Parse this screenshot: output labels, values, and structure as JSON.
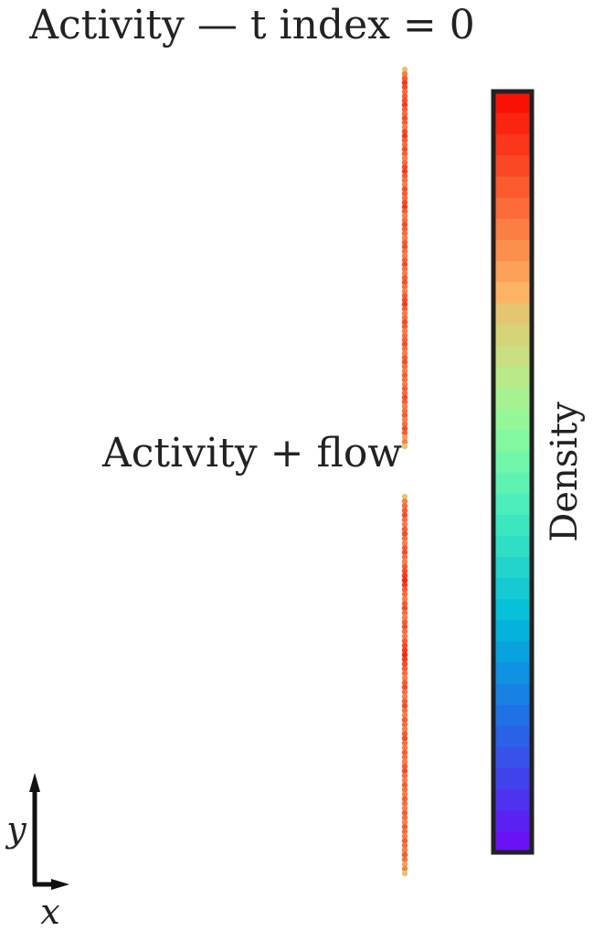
{
  "chart_data": {
    "type": "scatter",
    "title": "Activity — t index = 0",
    "panel_label": "Activity + flow",
    "colorbar_label": "Density",
    "colorbar_colors": [
      "#6a12f5",
      "#5c22f2",
      "#4e32ef",
      "#4242ed",
      "#3652eb",
      "#2a62e9",
      "#1e72e6",
      "#1882e4",
      "#0f92e1",
      "#08a2df",
      "#04b2dc",
      "#08c0d8",
      "#15cad2",
      "#22d4cc",
      "#2fdec5",
      "#3ce6bf",
      "#4ceeb9",
      "#5ef3b1",
      "#70f7a9",
      "#82f9a0",
      "#94f898",
      "#a6f290",
      "#b8ea88",
      "#c8e080",
      "#d6d478",
      "#e4c670",
      "#fcb462",
      "#fca258",
      "#fb904d",
      "#fb7e43",
      "#fb6c39",
      "#fb5a2e",
      "#fb4824",
      "#fb361a",
      "#fb2410",
      "#fb1206"
    ],
    "series": [
      {
        "segment": "upper",
        "x": 0,
        "y_range": [
          0,
          1
        ],
        "colors": [
          "#e4c670",
          "#fb7e43",
          "#fb5a2e",
          "#fb361a",
          "#fb4824",
          "#fb6c39",
          "#fb5a2e",
          "#fb4824",
          "#fb361a",
          "#fb5a2e",
          "#fb6c39",
          "#fb4824",
          "#fb5a2e",
          "#fb7e43",
          "#fb4824",
          "#fb361a",
          "#fb5a2e",
          "#fb6c39",
          "#fb4824",
          "#fb5a2e",
          "#fb7e43",
          "#fb6c39",
          "#fb4824",
          "#fb361a",
          "#fb5a2e",
          "#fb6c39",
          "#fb7e43",
          "#fb4824",
          "#fb5a2e",
          "#fb6c39",
          "#fb4824",
          "#fb361a",
          "#fb5a2e",
          "#fb7e43",
          "#fb6c39",
          "#fb4824",
          "#fb5a2e",
          "#fb6c39",
          "#fb7e43",
          "#fb5a2e",
          "#fb4824",
          "#fb6c39",
          "#fb7e43",
          "#fb5a2e",
          "#fb4824",
          "#fb6c39",
          "#fb7e43",
          "#fb5a2e",
          "#fb4824",
          "#fb6c39",
          "#fb7e43",
          "#fb5a2e",
          "#fb4824",
          "#fb361a",
          "#fb5a2e",
          "#fb7e43",
          "#fb6c39",
          "#fb4824",
          "#fb5a2e",
          "#fb7e43",
          "#fb6c39",
          "#fb5a2e",
          "#fb4824",
          "#fb6c39",
          "#fb7e43",
          "#fb5a2e",
          "#fb4824",
          "#fb6c39",
          "#fb7e43",
          "#fb5a2e",
          "#fb6c39",
          "#fb7e43",
          "#fb5a2e",
          "#fb6c39",
          "#fb4824",
          "#fb5a2e",
          "#fb7e43",
          "#fb6c39",
          "#fb5a2e",
          "#fb7e43",
          "#fb6c39",
          "#fb4824",
          "#fb5a2e",
          "#fca258",
          "#fb7e43",
          "#e4c670"
        ]
      },
      {
        "segment": "lower",
        "x": 0,
        "y_range": [
          0,
          1
        ],
        "colors": [
          "#e4c670",
          "#fb7e43",
          "#fb6c39",
          "#fb5a2e",
          "#fb4824",
          "#fb6c39",
          "#fb7e43",
          "#fb5a2e",
          "#fb4824",
          "#fb6c39",
          "#fb7e43",
          "#fb5a2e",
          "#fb4824",
          "#fb6c39",
          "#fb7e43",
          "#fb5a2e",
          "#fb4824",
          "#fb361a",
          "#fb2410",
          "#fb361a",
          "#fb5a2e",
          "#fb6c39",
          "#fb7e43",
          "#fb5a2e",
          "#fb4824",
          "#fb6c39",
          "#fb7e43",
          "#fb5a2e",
          "#fb4824",
          "#fb6c39",
          "#fb7e43",
          "#fb5a2e",
          "#fb4824",
          "#fb361a",
          "#fb2410",
          "#fb361a",
          "#fb4824",
          "#fb5a2e",
          "#fb6c39",
          "#fb7e43",
          "#fb5a2e",
          "#fb4824",
          "#fb6c39",
          "#fb7e43",
          "#fb5a2e",
          "#fb4824",
          "#fb6c39",
          "#fb7e43",
          "#fb5a2e",
          "#fb6c39",
          "#fb7e43",
          "#fb5a2e",
          "#fb4824",
          "#fb6c39",
          "#fb7e43",
          "#fb5a2e",
          "#fb6c39",
          "#fb7e43",
          "#fb5a2e",
          "#fb4824",
          "#fb6c39",
          "#fb7e43",
          "#fb5a2e",
          "#fb6c39",
          "#fb7e43",
          "#fb5a2e",
          "#fb6c39",
          "#fb7e43",
          "#fb5a2e",
          "#fb6c39",
          "#fb7e43",
          "#fb5a2e",
          "#fb6c39",
          "#fb7e43",
          "#fb5a2e",
          "#fb6c39",
          "#fb7e43",
          "#fb5a2e",
          "#fb6c39",
          "#fca258",
          "#fb7e43",
          "#e4c670"
        ]
      }
    ],
    "axes_indicator": {
      "x_label": "x",
      "y_label": "y"
    },
    "grid": false,
    "legend": "none"
  }
}
